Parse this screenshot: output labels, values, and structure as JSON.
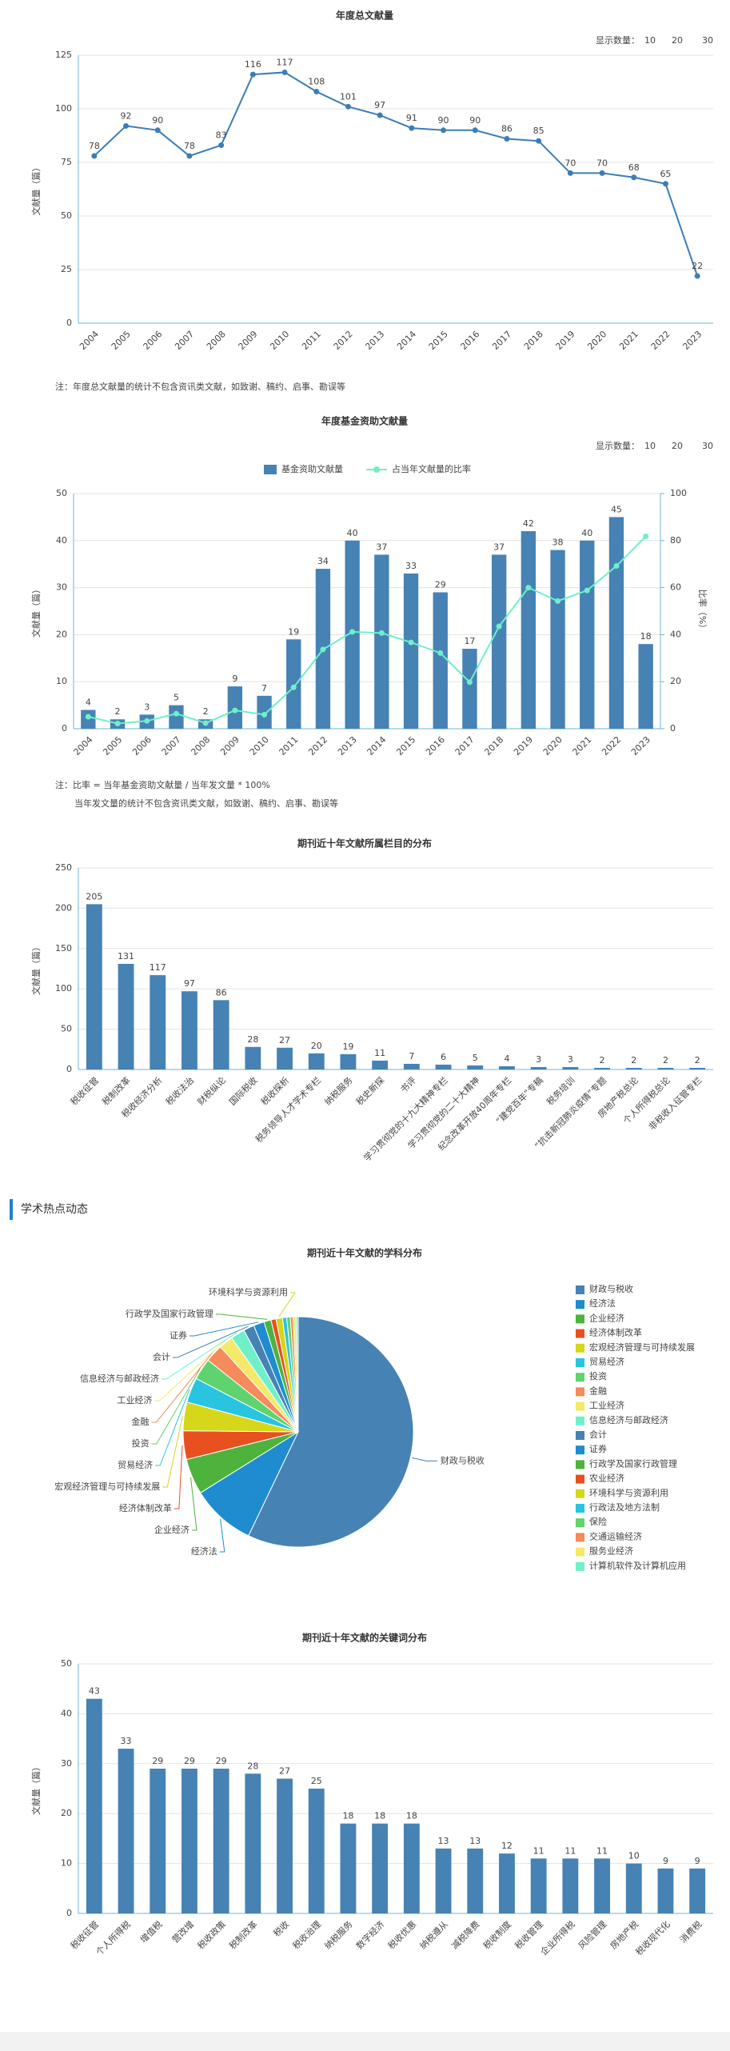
{
  "section_title": "学术热点动态",
  "chart_data": [
    {
      "type": "line",
      "title": "年度总文献量",
      "display_label": "显示数量：",
      "display_options": [
        10,
        20,
        30
      ],
      "y_label": "文献量（篇）",
      "categories": [
        "2004",
        "2005",
        "2006",
        "2007",
        "2008",
        "2009",
        "2010",
        "2011",
        "2012",
        "2013",
        "2014",
        "2015",
        "2016",
        "2017",
        "2018",
        "2019",
        "2020",
        "2021",
        "2022",
        "2023"
      ],
      "values": [
        78,
        92,
        90,
        78,
        83,
        116,
        117,
        108,
        101,
        97,
        91,
        90,
        90,
        86,
        85,
        70,
        70,
        68,
        65,
        22
      ],
      "color": "#3c7db5",
      "ylim": [
        0,
        125
      ],
      "yticks": [
        0,
        25,
        50,
        75,
        100,
        125
      ],
      "grid": true,
      "notes": [
        "注：年度总文献量的统计不包含资讯类文献，如致谢、稿约、启事、勘误等"
      ]
    },
    {
      "type": "bar",
      "title": "年度基金资助文献量",
      "display_label": "显示数量：",
      "display_options": [
        10,
        20,
        30
      ],
      "y_label": "文献量（篇）",
      "y2_label": "比率（%）",
      "categories": [
        "2004",
        "2005",
        "2006",
        "2007",
        "2008",
        "2009",
        "2010",
        "2011",
        "2012",
        "2013",
        "2014",
        "2015",
        "2016",
        "2017",
        "2018",
        "2019",
        "2020",
        "2021",
        "2022",
        "2023"
      ],
      "series": [
        {
          "name": "基金资助文献量",
          "color": "#4682b4",
          "values": [
            4,
            2,
            3,
            5,
            2,
            9,
            7,
            19,
            34,
            40,
            37,
            33,
            29,
            17,
            37,
            42,
            38,
            40,
            45,
            18
          ]
        },
        {
          "name": "占当年文献量的比率",
          "color": "#6ef0c8",
          "type": "line",
          "axis": "y2",
          "values": [
            5.1,
            2.2,
            3.3,
            6.4,
            2.4,
            7.8,
            6.0,
            17.6,
            33.7,
            41.2,
            40.7,
            36.7,
            32.2,
            19.8,
            43.5,
            60.0,
            54.3,
            58.8,
            69.2,
            81.8
          ]
        }
      ],
      "ylim": [
        0,
        50
      ],
      "yticks": [
        0,
        10,
        20,
        30,
        40,
        50
      ],
      "y2lim": [
        0,
        100
      ],
      "y2ticks": [
        0,
        20,
        40,
        60,
        80,
        100
      ],
      "grid": true,
      "legend": "top",
      "notes": [
        "注：比率 = 当年基金资助文献量 / 当年发文量 * 100%",
        "当年发文量的统计不包含资讯类文献，如致谢、稿约、启事、勘误等"
      ]
    },
    {
      "type": "bar",
      "title": "期刊近十年文献所属栏目的分布",
      "y_label": "文献量（篇）",
      "categories": [
        "税收征管",
        "税制改革",
        "税收经济分析",
        "税收法治",
        "财税纵论",
        "国际税收",
        "税收探析",
        "税务领导人才学术专栏",
        "纳税服务",
        "税史新探",
        "书评",
        "学习贯彻党的十九大精神专栏",
        "学习贯彻党的二十大精神",
        "纪念改革开放40周年专栏",
        "“建党百年”专稿",
        "税务培训",
        "“抗击新冠肺炎疫情”专题",
        "房地产税总论",
        "个人所得税总论",
        "非税收入征管专栏"
      ],
      "values": [
        205,
        131,
        117,
        97,
        86,
        28,
        27,
        20,
        19,
        11,
        7,
        6,
        5,
        4,
        3,
        3,
        2,
        2,
        2,
        2
      ],
      "color": "#4682b4",
      "ylim": [
        0,
        250
      ],
      "yticks": [
        0,
        50,
        100,
        150,
        200,
        250
      ],
      "grid": true
    },
    {
      "type": "pie",
      "title": "期刊近十年文献的学科分布",
      "categories": [
        "财政与税收",
        "经济法",
        "企业经济",
        "经济体制改革",
        "宏观经济管理与可持续发展",
        "贸易经济",
        "投资",
        "金融",
        "工业经济",
        "信息经济与邮政经济",
        "会计",
        "证券",
        "行政学及国家行政管理",
        "农业经济",
        "环境科学与资源利用",
        "行政法及地方法制",
        "保险",
        "交通运输经济",
        "服务业经济",
        "计算机软件及计算机应用"
      ],
      "values": [
        57,
        9,
        5,
        4,
        4,
        3.5,
        3,
        2.5,
        2,
        2,
        1.5,
        1.5,
        1,
        0.7,
        0.9,
        0.6,
        0.5,
        0.4,
        0.4,
        0.3
      ],
      "colors": [
        "#4682b4",
        "#1e8ccf",
        "#4db33d",
        "#e8501f",
        "#d6d61a",
        "#29c4e0",
        "#5fd36d",
        "#f58a5a",
        "#f5e86a",
        "#6ff0c8",
        "#4682b4",
        "#1e8ccf",
        "#4db33d",
        "#e8501f",
        "#d6d61a",
        "#29c4e0",
        "#5fd36d",
        "#f58a5a",
        "#f5e86a",
        "#6ff0c8"
      ],
      "legend": "right"
    },
    {
      "type": "bar",
      "title": "期刊近十年文献的关键词分布",
      "y_label": "文献量（篇）",
      "categories": [
        "税收征管",
        "个人所得税",
        "增值税",
        "营改增",
        "税收政策",
        "税制改革",
        "税收",
        "税收治理",
        "纳税服务",
        "数字经济",
        "税收优惠",
        "纳税遵从",
        "减税降费",
        "税收制度",
        "税收管理",
        "企业所得税",
        "风险管理",
        "房地产税",
        "税收现代化",
        "消费税"
      ],
      "values": [
        43,
        33,
        29,
        29,
        29,
        28,
        27,
        25,
        18,
        18,
        18,
        13,
        13,
        12,
        11,
        11,
        11,
        10,
        9,
        9
      ],
      "color": "#4682b4",
      "ylim": [
        0,
        50
      ],
      "yticks": [
        0,
        10,
        20,
        30,
        40,
        50
      ],
      "grid": true
    }
  ]
}
